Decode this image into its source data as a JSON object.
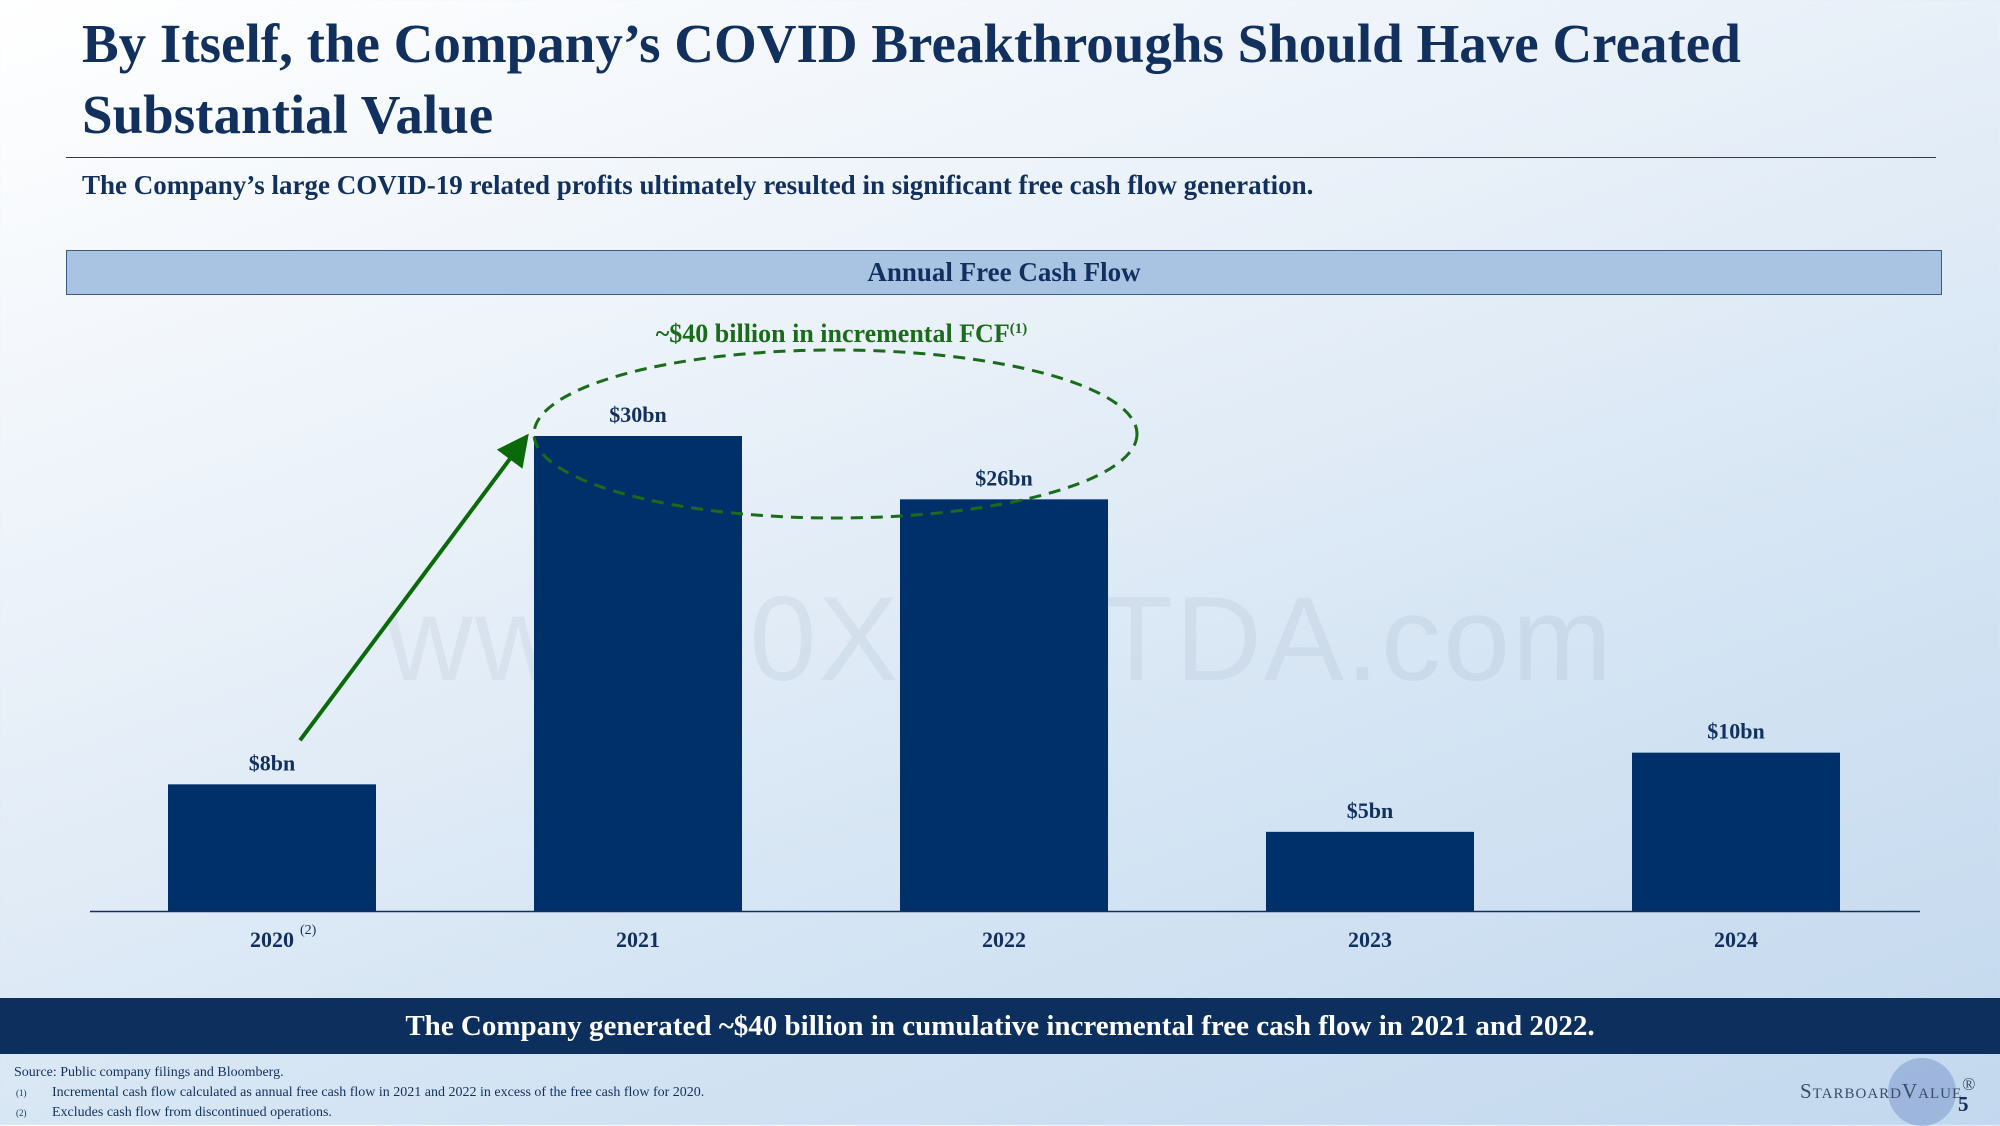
{
  "slide": {
    "title": "By Itself, the Company’s COVID Breakthroughs Should Have Created Substantial Value",
    "subtitle": "The Company’s large COVID-19 related profits ultimately resulted in significant free cash flow generation.",
    "chart_header": "Annual Free Cash Flow",
    "banner": "The Company generated ~$40 billion in cumulative incremental free cash flow in 2021 and 2022.",
    "watermark": "www.10XEBITDA.com",
    "page_number": "5"
  },
  "footnotes": {
    "source": "Source: Public company filings and Bloomberg.",
    "items": [
      {
        "mark": "(1)",
        "text": "Incremental cash flow calculated as annual free cash flow in 2021 and 2022 in excess of the free cash flow for 2020."
      },
      {
        "mark": "(2)",
        "text": "Excludes cash flow from discontinued operations."
      }
    ]
  },
  "logo": {
    "text": "StarboardValue",
    "mark": "®"
  },
  "colors": {
    "bar": "#00306a",
    "annotation": "#1a6b1a",
    "arrow": "#0a6a0a"
  },
  "chart_data": {
    "type": "bar",
    "title": "Annual Free Cash Flow",
    "categories": [
      "2020",
      "2021",
      "2022",
      "2023",
      "2024"
    ],
    "category_notes": [
      "(2)",
      "",
      "",
      "",
      ""
    ],
    "values": [
      8,
      30,
      26,
      5,
      10
    ],
    "value_labels": [
      "$8bn",
      "$30bn",
      "$26bn",
      "$5bn",
      "$10bn"
    ],
    "unit": "$ billions",
    "ylim": [
      0,
      30
    ],
    "grid": false,
    "annotation": {
      "text": "~$40 billion in incremental FCF",
      "superscript": "(1)",
      "highlighted_categories": [
        "2021",
        "2022"
      ],
      "arrow_from": "2020",
      "arrow_to": "2021"
    }
  }
}
